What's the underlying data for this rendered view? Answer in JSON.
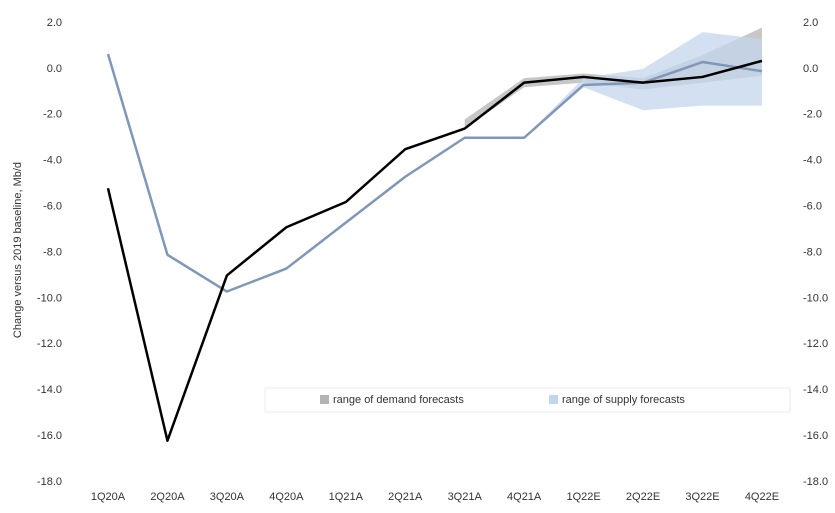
{
  "chart_data": {
    "type": "line",
    "y_label": "Change versus 2019 baseline, Mb/d",
    "categories": [
      "1Q20A",
      "2Q20A",
      "3Q20A",
      "4Q20A",
      "1Q21A",
      "2Q21A",
      "3Q21A",
      "4Q21A",
      "1Q22E",
      "2Q22E",
      "3Q22E",
      "4Q22E"
    ],
    "ylim": [
      -18,
      2
    ],
    "yticks": [
      {
        "value": 2,
        "label": "2.0"
      },
      {
        "value": 0,
        "label": "0.0"
      },
      {
        "value": -2,
        "label": "-2.0"
      },
      {
        "value": -4,
        "label": "-4.0"
      },
      {
        "value": -6,
        "label": "-6.0"
      },
      {
        "value": -8,
        "label": "-8.0"
      },
      {
        "value": -10,
        "label": "-10.0"
      },
      {
        "value": -12,
        "label": "-12.0"
      },
      {
        "value": -14,
        "label": "-14.0"
      },
      {
        "value": -16,
        "label": "-16.0"
      },
      {
        "value": -18,
        "label": "-18.0"
      }
    ],
    "y2lim": [
      -18,
      2
    ],
    "y2ticks": [
      {
        "value": 2,
        "label": "2.0"
      },
      {
        "value": 0,
        "label": "0.0"
      },
      {
        "value": -2,
        "label": "-2.0"
      },
      {
        "value": -4,
        "label": "-4.0"
      },
      {
        "value": -6,
        "label": "-6.0"
      },
      {
        "value": -8,
        "label": "-8.0"
      },
      {
        "value": -10,
        "label": "-10.0"
      },
      {
        "value": -12,
        "label": "-12.0"
      },
      {
        "value": -14,
        "label": "-14.0"
      },
      {
        "value": -16,
        "label": "-16.0"
      },
      {
        "value": -18,
        "label": "-18.0"
      }
    ],
    "bands": [
      {
        "name": "range of demand forecasts",
        "color": "#b4b4b4",
        "low": [
          null,
          null,
          null,
          null,
          null,
          null,
          -2.6,
          -0.8,
          -0.6,
          -0.9,
          -0.6,
          -0.3
        ],
        "high": [
          null,
          null,
          null,
          null,
          null,
          null,
          -2.2,
          -0.4,
          -0.2,
          -0.4,
          0.6,
          1.8
        ]
      },
      {
        "name": "range of supply forecasts",
        "color": "#c3d5ec",
        "low": [
          null,
          null,
          null,
          null,
          null,
          null,
          null,
          -3.0,
          -0.8,
          -1.8,
          -1.6,
          -1.6
        ],
        "high": [
          null,
          null,
          null,
          null,
          null,
          null,
          null,
          -3.0,
          -0.4,
          0.0,
          1.6,
          1.3
        ]
      }
    ],
    "series": [
      {
        "color": "#7f97b8",
        "values": [
          0.65,
          -8.1,
          -9.7,
          -8.7,
          -6.7,
          -4.7,
          -3.0,
          -3.0,
          -0.7,
          -0.6,
          0.3,
          -0.1
        ]
      },
      {
        "color": "#000000",
        "values": [
          -5.2,
          -16.2,
          -9.0,
          -6.9,
          -5.8,
          -3.5,
          -2.6,
          -0.6,
          -0.35,
          -0.6,
          -0.35,
          0.35
        ]
      }
    ]
  }
}
